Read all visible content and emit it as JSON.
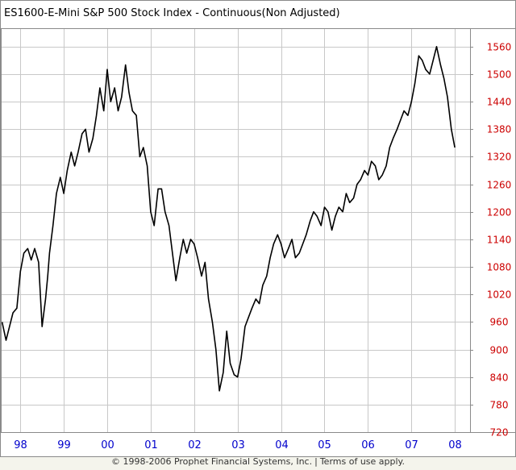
{
  "footer": {
    "copyright": "© 1998-2006 Prophet Financial Systems, Inc.",
    "separator": "|",
    "terms_link": "Terms of use apply."
  },
  "colors": {
    "price_line": "#000000",
    "grid": "#c8c8c8",
    "y_tick_labels": "#cc0000",
    "x_tick_labels": "#0000cc",
    "plot_background": "#ffffff",
    "page_background": "#f4f4ec"
  },
  "chart_data": {
    "type": "line",
    "title": "ES1600-E-Mini S&P 500 Stock Index - Continuous(Non Adjusted)",
    "xlabel": "",
    "ylabel": "",
    "x_tick_labels": [
      "98",
      "99",
      "00",
      "01",
      "02",
      "03",
      "04",
      "05",
      "06",
      "07",
      "08"
    ],
    "x_tick_years": [
      1998,
      1999,
      2000,
      2001,
      2002,
      2003,
      2004,
      2005,
      2006,
      2007,
      2008
    ],
    "y_tick_labels": [
      "720",
      "780",
      "840",
      "900",
      "960",
      "1020",
      "1080",
      "1140",
      "1200",
      "1260",
      "1320",
      "1380",
      "1440",
      "1500",
      "1560"
    ],
    "ylim": [
      720,
      1600
    ],
    "xlim": [
      1997.55,
      2008.35
    ],
    "y_axis_side": "right",
    "grid": true,
    "legend": "none",
    "x": [
      1997.58,
      1997.67,
      1997.75,
      1997.83,
      1997.92,
      1998.0,
      1998.08,
      1998.17,
      1998.25,
      1998.33,
      1998.42,
      1998.5,
      1998.58,
      1998.63,
      1998.67,
      1998.75,
      1998.83,
      1998.92,
      1999.0,
      1999.08,
      1999.17,
      1999.25,
      1999.33,
      1999.42,
      1999.5,
      1999.58,
      1999.67,
      1999.75,
      1999.83,
      1999.92,
      2000.0,
      2000.08,
      2000.17,
      2000.25,
      2000.33,
      2000.42,
      2000.5,
      2000.58,
      2000.67,
      2000.75,
      2000.83,
      2000.92,
      2001.0,
      2001.08,
      2001.17,
      2001.25,
      2001.33,
      2001.42,
      2001.5,
      2001.58,
      2001.67,
      2001.75,
      2001.83,
      2001.92,
      2002.0,
      2002.08,
      2002.17,
      2002.25,
      2002.33,
      2002.42,
      2002.5,
      2002.58,
      2002.67,
      2002.75,
      2002.83,
      2002.92,
      2003.0,
      2003.08,
      2003.17,
      2003.25,
      2003.33,
      2003.42,
      2003.5,
      2003.58,
      2003.67,
      2003.75,
      2003.83,
      2003.92,
      2004.0,
      2004.08,
      2004.17,
      2004.25,
      2004.33,
      2004.42,
      2004.5,
      2004.58,
      2004.67,
      2004.75,
      2004.83,
      2004.92,
      2005.0,
      2005.08,
      2005.17,
      2005.25,
      2005.33,
      2005.42,
      2005.5,
      2005.58,
      2005.67,
      2005.75,
      2005.83,
      2005.92,
      2006.0,
      2006.08,
      2006.17,
      2006.25,
      2006.33,
      2006.42,
      2006.5,
      2006.58,
      2006.67,
      2006.75,
      2006.83,
      2006.92,
      2007.0,
      2007.08,
      2007.17,
      2007.25,
      2007.33,
      2007.42,
      2007.5,
      2007.58,
      2007.67,
      2007.75,
      2007.83,
      2007.92,
      2008.0
    ],
    "values": [
      960,
      920,
      950,
      980,
      990,
      1070,
      1110,
      1120,
      1095,
      1120,
      1090,
      950,
      1010,
      1060,
      1110,
      1170,
      1240,
      1275,
      1240,
      1290,
      1330,
      1300,
      1330,
      1370,
      1380,
      1330,
      1360,
      1410,
      1470,
      1420,
      1510,
      1440,
      1470,
      1420,
      1450,
      1520,
      1460,
      1420,
      1410,
      1320,
      1340,
      1300,
      1200,
      1170,
      1250,
      1250,
      1200,
      1170,
      1110,
      1050,
      1100,
      1140,
      1110,
      1140,
      1130,
      1100,
      1060,
      1090,
      1010,
      960,
      900,
      810,
      850,
      940,
      870,
      845,
      840,
      880,
      950,
      970,
      990,
      1010,
      1000,
      1040,
      1060,
      1100,
      1130,
      1150,
      1130,
      1100,
      1120,
      1140,
      1100,
      1110,
      1130,
      1150,
      1180,
      1200,
      1190,
      1170,
      1210,
      1200,
      1160,
      1190,
      1210,
      1200,
      1240,
      1220,
      1230,
      1260,
      1270,
      1290,
      1280,
      1310,
      1300,
      1270,
      1280,
      1300,
      1340,
      1360,
      1380,
      1400,
      1420,
      1410,
      1440,
      1480,
      1540,
      1530,
      1510,
      1500,
      1530,
      1560,
      1520,
      1490,
      1450,
      1380,
      1340
    ]
  }
}
